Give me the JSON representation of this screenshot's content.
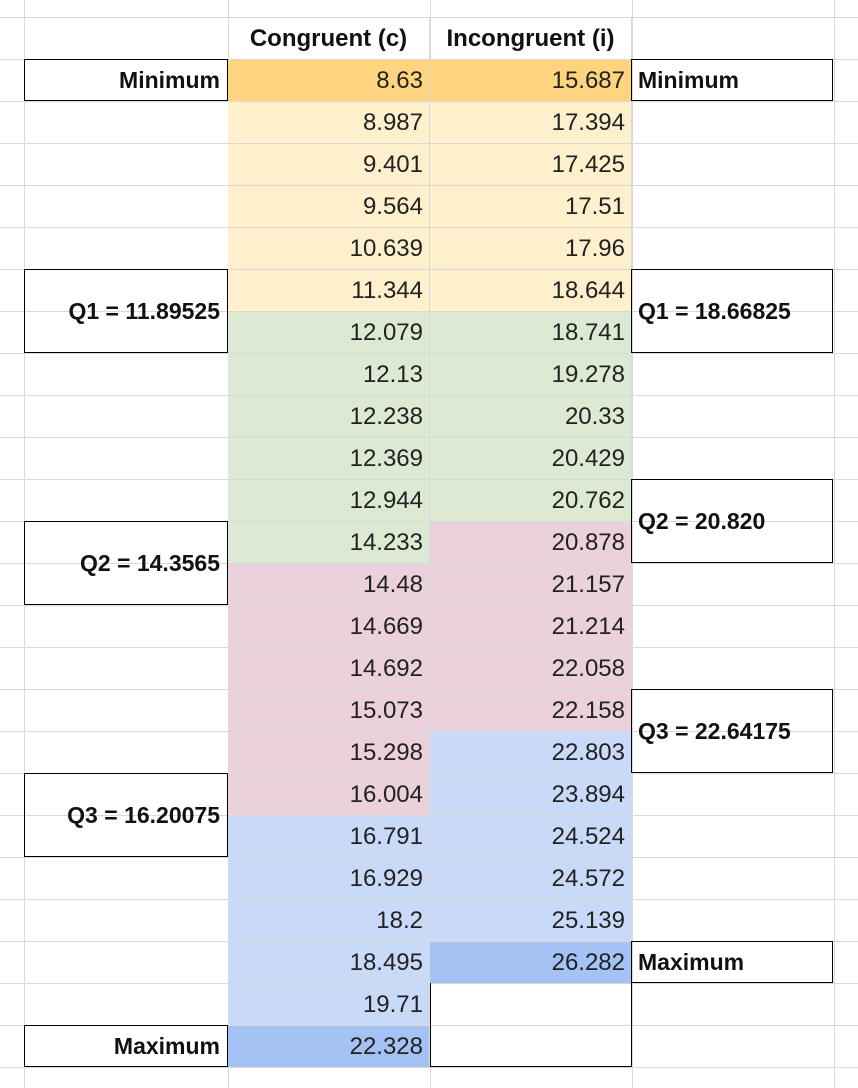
{
  "headers": {
    "congruent": "Congruent (c)",
    "incongruent": "Incongruent (i)"
  },
  "congruent": {
    "values": [
      "8.63",
      "8.987",
      "9.401",
      "9.564",
      "10.639",
      "11.344",
      "12.079",
      "12.13",
      "12.238",
      "12.369",
      "12.944",
      "14.233",
      "14.48",
      "14.669",
      "14.692",
      "15.073",
      "15.298",
      "16.004",
      "16.791",
      "16.929",
      "18.2",
      "18.495",
      "19.71",
      "22.328"
    ],
    "quartile_groups": [
      1,
      1,
      1,
      1,
      1,
      1,
      2,
      2,
      2,
      2,
      2,
      2,
      3,
      3,
      3,
      3,
      3,
      3,
      4,
      4,
      4,
      4,
      4,
      4
    ],
    "extremes": [
      "min",
      "",
      "",
      "",
      "",
      "",
      "",
      "",
      "",
      "",
      "",
      "",
      "",
      "",
      "",
      "",
      "",
      "",
      "",
      "",
      "",
      "",
      "",
      "max"
    ]
  },
  "incongruent": {
    "values": [
      "15.687",
      "17.394",
      "17.425",
      "17.51",
      "17.96",
      "18.644",
      "18.741",
      "19.278",
      "20.33",
      "20.429",
      "20.762",
      "20.878",
      "21.157",
      "21.214",
      "22.058",
      "22.158",
      "22.803",
      "23.894",
      "24.524",
      "24.572",
      "25.139",
      "26.282"
    ],
    "quartile_groups": [
      1,
      1,
      1,
      1,
      1,
      1,
      2,
      2,
      2,
      2,
      2,
      3,
      3,
      3,
      3,
      3,
      4,
      4,
      4,
      4,
      4,
      4
    ],
    "extremes": [
      "min",
      "",
      "",
      "",
      "",
      "",
      "",
      "",
      "",
      "",
      "",
      "",
      "",
      "",
      "",
      "",
      "",
      "",
      "",
      "",
      "",
      "max"
    ]
  },
  "labels": {
    "left": {
      "min": "Minimum",
      "q1": "Q1 = 11.89525",
      "q2": "Q2 = 14.3565",
      "q3": "Q3 = 16.20075",
      "max": "Maximum"
    },
    "right": {
      "min": "Minimum",
      "q1": "Q1 = 18.66825",
      "q2": "Q2 = 20.820",
      "q3": "Q3 = 22.64175",
      "max": "Maximum"
    }
  },
  "colors": {
    "group1": "#fef0cd",
    "group2": "#dcead4",
    "group3": "#ead1dc",
    "group4": "#c9daf8",
    "min_highlight": "#fed47f",
    "max_highlight": "#a4c2f4"
  }
}
